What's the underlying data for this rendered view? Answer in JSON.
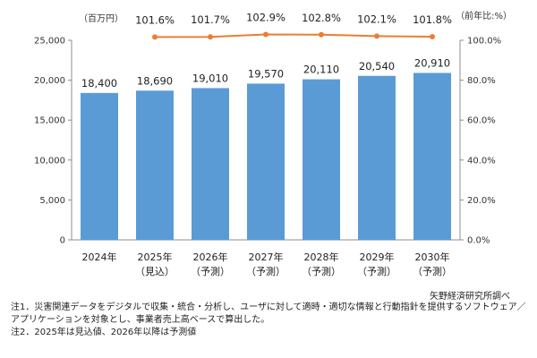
{
  "chart_data": {
    "type": "bar",
    "categories": [
      "2024年",
      "2025年",
      "2026年",
      "2027年",
      "2028年",
      "2029年",
      "2030年"
    ],
    "category_sublabels": [
      "",
      "（見込）",
      "（予測）",
      "（予測）",
      "（予測）",
      "（予測）",
      "（予測）"
    ],
    "series": [
      {
        "values": [
          18400,
          18690,
          19010,
          19570,
          20110,
          20540,
          20910
        ],
        "value_labels": [
          "18,400",
          "18,690",
          "19,010",
          "19,570",
          "20,110",
          "20,540",
          "20,910"
        ],
        "axis": "left",
        "color": "#5b9bd5"
      },
      {
        "type": "line",
        "values": [
          null,
          101.6,
          101.7,
          102.9,
          102.8,
          102.1,
          101.8
        ],
        "value_labels": [
          "",
          "101.6%",
          "101.7%",
          "102.9%",
          "102.8%",
          "102.1%",
          "101.8%"
        ],
        "axis": "right",
        "color": "#ed7d31"
      }
    ],
    "left_axis": {
      "unit": "（百万円）",
      "ylim": [
        0,
        25000
      ],
      "ticks": [
        0,
        5000,
        10000,
        15000,
        20000,
        25000
      ],
      "tick_labels": [
        "0",
        "5,000",
        "10,000",
        "15,000",
        "20,000",
        "25,000"
      ]
    },
    "right_axis": {
      "unit": "（前年比:%）",
      "ylim": [
        0,
        100
      ],
      "ticks": [
        0,
        20,
        40,
        60,
        80,
        100
      ],
      "tick_labels": [
        "0.0%",
        "20.0%",
        "40.0%",
        "60.0%",
        "80.0%",
        "100.0%"
      ]
    },
    "grid": false
  },
  "source": "矢野経済研究所調べ",
  "notes": [
    "注1．災害関連データをデジタルで収集・統合・分析し、ユーザに対して適時・適切な情報と行動指針を提供するソフトウェア／",
    "アプリケーションを対象とし、事業者売上高ベースで算出した。",
    "注2．2025年は見込値、2026年以降は予測値"
  ]
}
